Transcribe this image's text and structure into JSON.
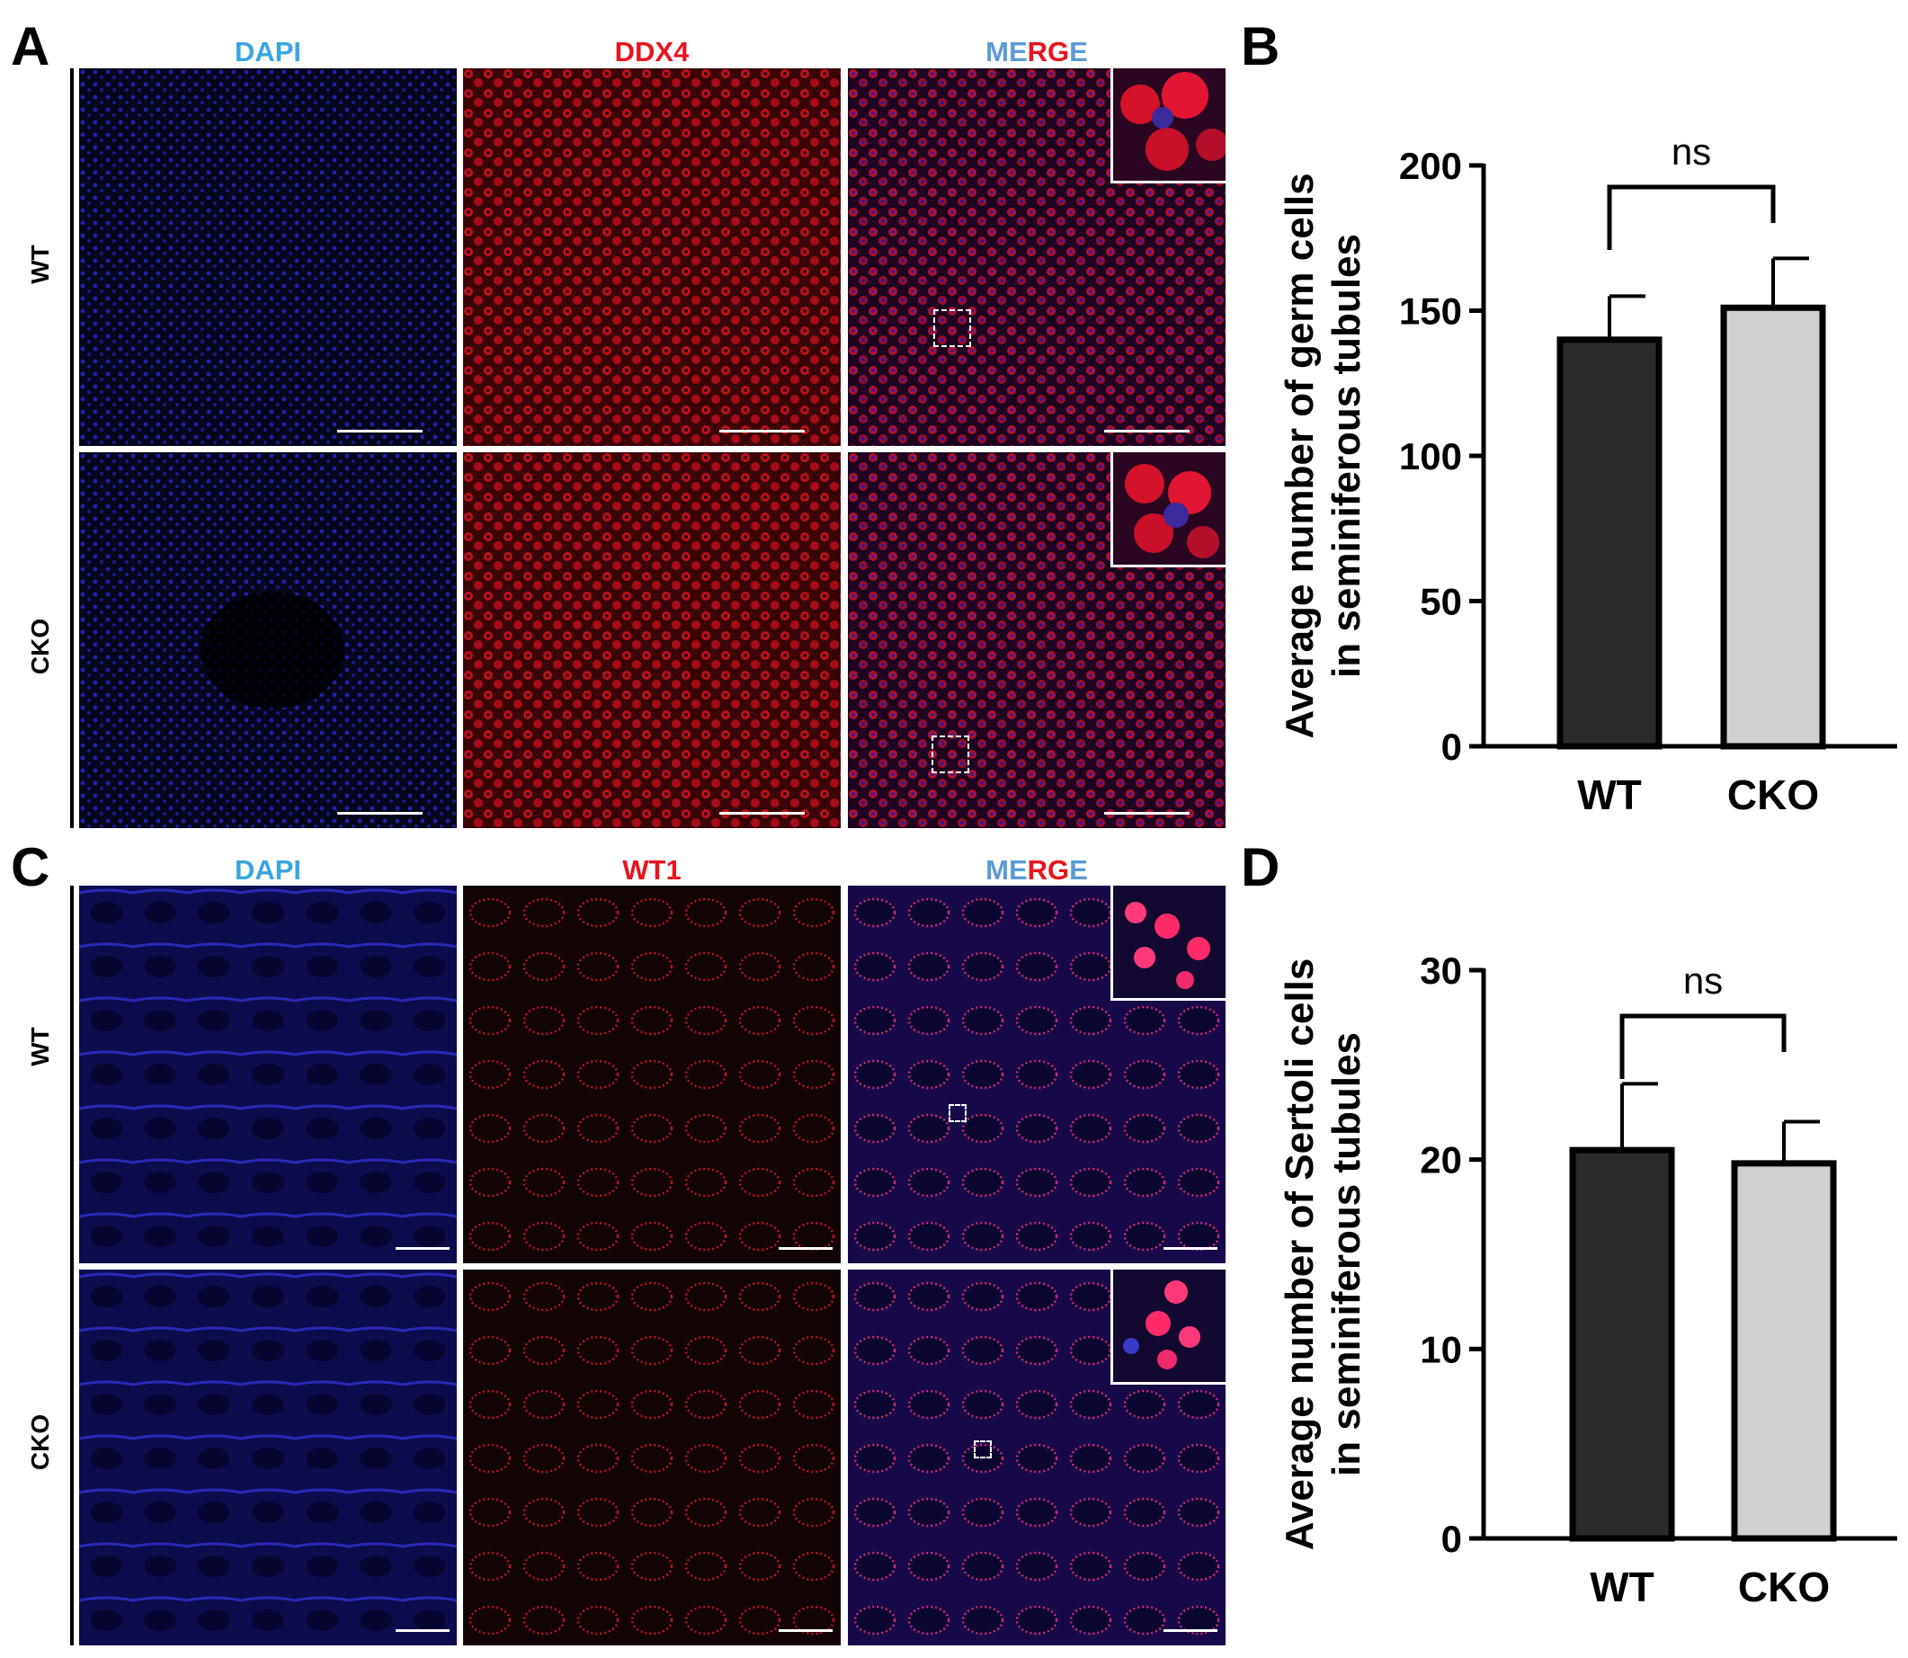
{
  "panels": {
    "A": {
      "letter": "A",
      "channels": [
        "DAPI",
        "DDX4",
        "MERGE"
      ],
      "merge_letters": [
        "M",
        "E",
        "R",
        "G",
        "E"
      ],
      "rows": [
        "WT",
        "CKO"
      ]
    },
    "C": {
      "letter": "C",
      "channels": [
        "DAPI",
        "WT1",
        "MERGE"
      ],
      "merge_letters": [
        "M",
        "E",
        "R",
        "G",
        "E"
      ],
      "rows": [
        "WT",
        "CKO"
      ]
    },
    "B": {
      "letter": "B"
    },
    "D": {
      "letter": "D"
    }
  },
  "colors": {
    "dapi_label": "#3aa6e0",
    "marker_label": "#e8141e",
    "merge_M": "#5b9bd5",
    "merge_E1": "#5b9bd5",
    "merge_R": "#e8141e",
    "merge_G": "#e8141e",
    "merge_E2": "#5b9bd5",
    "bar_wt": "#2b2b2b",
    "bar_cko": "#d0d0d0"
  },
  "chart_data": [
    {
      "type": "bar",
      "panel": "B",
      "categories": [
        "WT",
        "CKO"
      ],
      "values": [
        140,
        151
      ],
      "errors": [
        15,
        17
      ],
      "ylabel": "Average number of germ cells in seminiferous tubules",
      "ylabel_lines": [
        "Average number of germ cells",
        "in seminiferous tubules"
      ],
      "ylim": [
        0,
        200
      ],
      "yticks": [
        0,
        50,
        100,
        150,
        200
      ],
      "significance": "ns"
    },
    {
      "type": "bar",
      "panel": "D",
      "categories": [
        "WT",
        "CKO"
      ],
      "values": [
        20.5,
        19.8
      ],
      "errors": [
        3.5,
        2.2
      ],
      "ylabel": "Average number of Sertoli cells in seminiferous tubules",
      "ylabel_lines": [
        "Average number of Sertoli cells",
        "in seminiferous tubules"
      ],
      "ylim": [
        0,
        30
      ],
      "yticks": [
        0,
        10,
        20,
        30
      ],
      "significance": "ns"
    }
  ]
}
